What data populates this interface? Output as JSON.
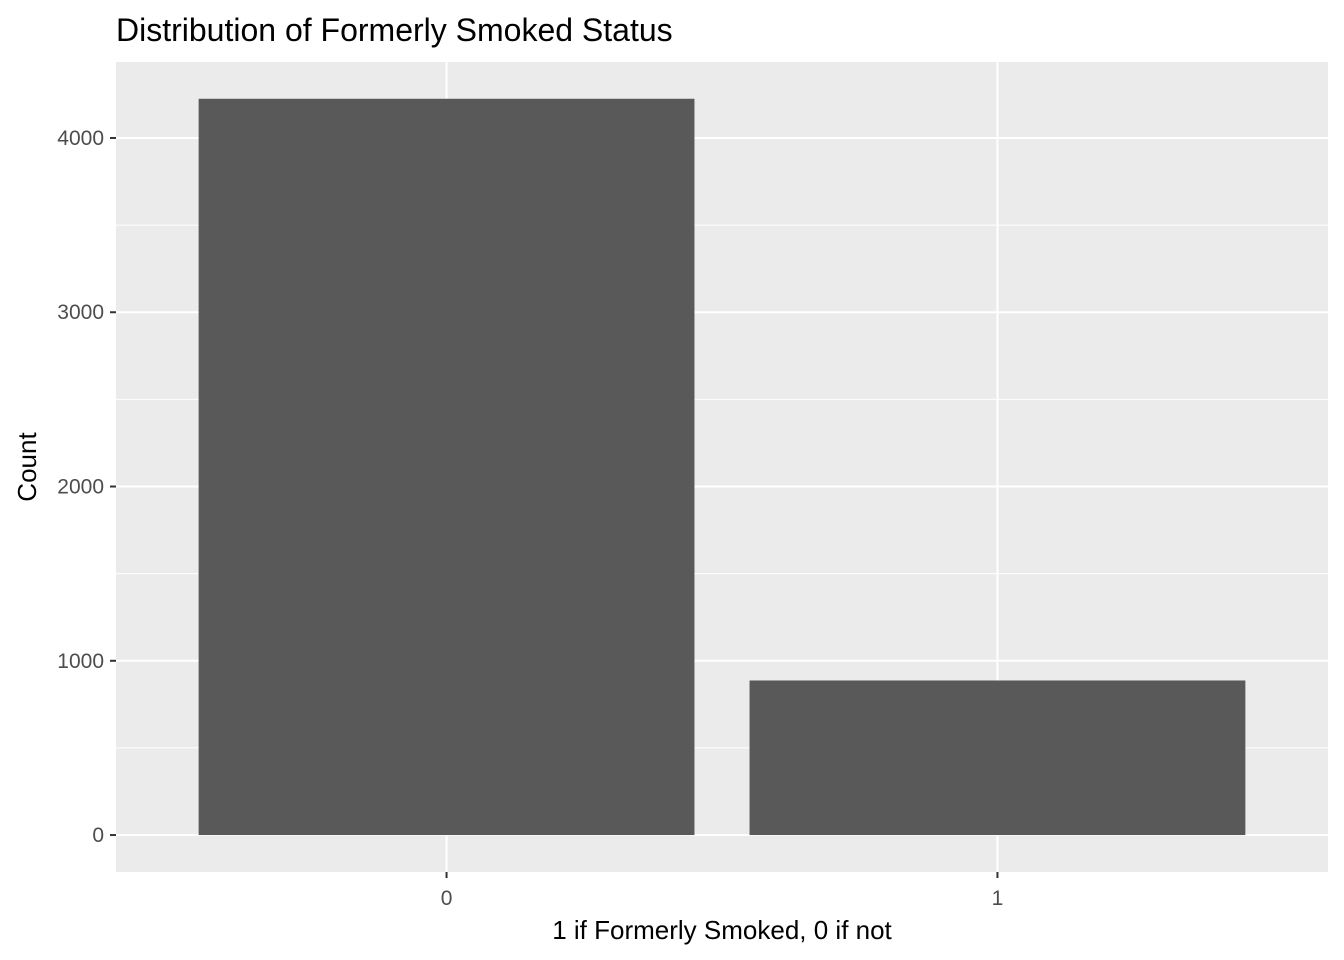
{
  "chart_data": {
    "type": "bar",
    "title": "Distribution of Formerly Smoked Status",
    "xlabel": "1 if Formerly Smoked, 0 if not",
    "ylabel": "Count",
    "categories": [
      "0",
      "1"
    ],
    "values": [
      4225,
      887
    ],
    "ylim": [
      -212,
      4436
    ],
    "yticks": [
      0,
      1000,
      2000,
      3000,
      4000
    ],
    "ytick_labels": [
      "0",
      "1000",
      "2000",
      "3000",
      "4000"
    ],
    "grid": true,
    "legend": "none",
    "colors": {
      "panel_background": "#EBEBEB",
      "grid": "#FFFFFF",
      "bar_fill": "#595959",
      "tick_text": "#4D4D4D",
      "tick_mark": "#333333"
    }
  }
}
